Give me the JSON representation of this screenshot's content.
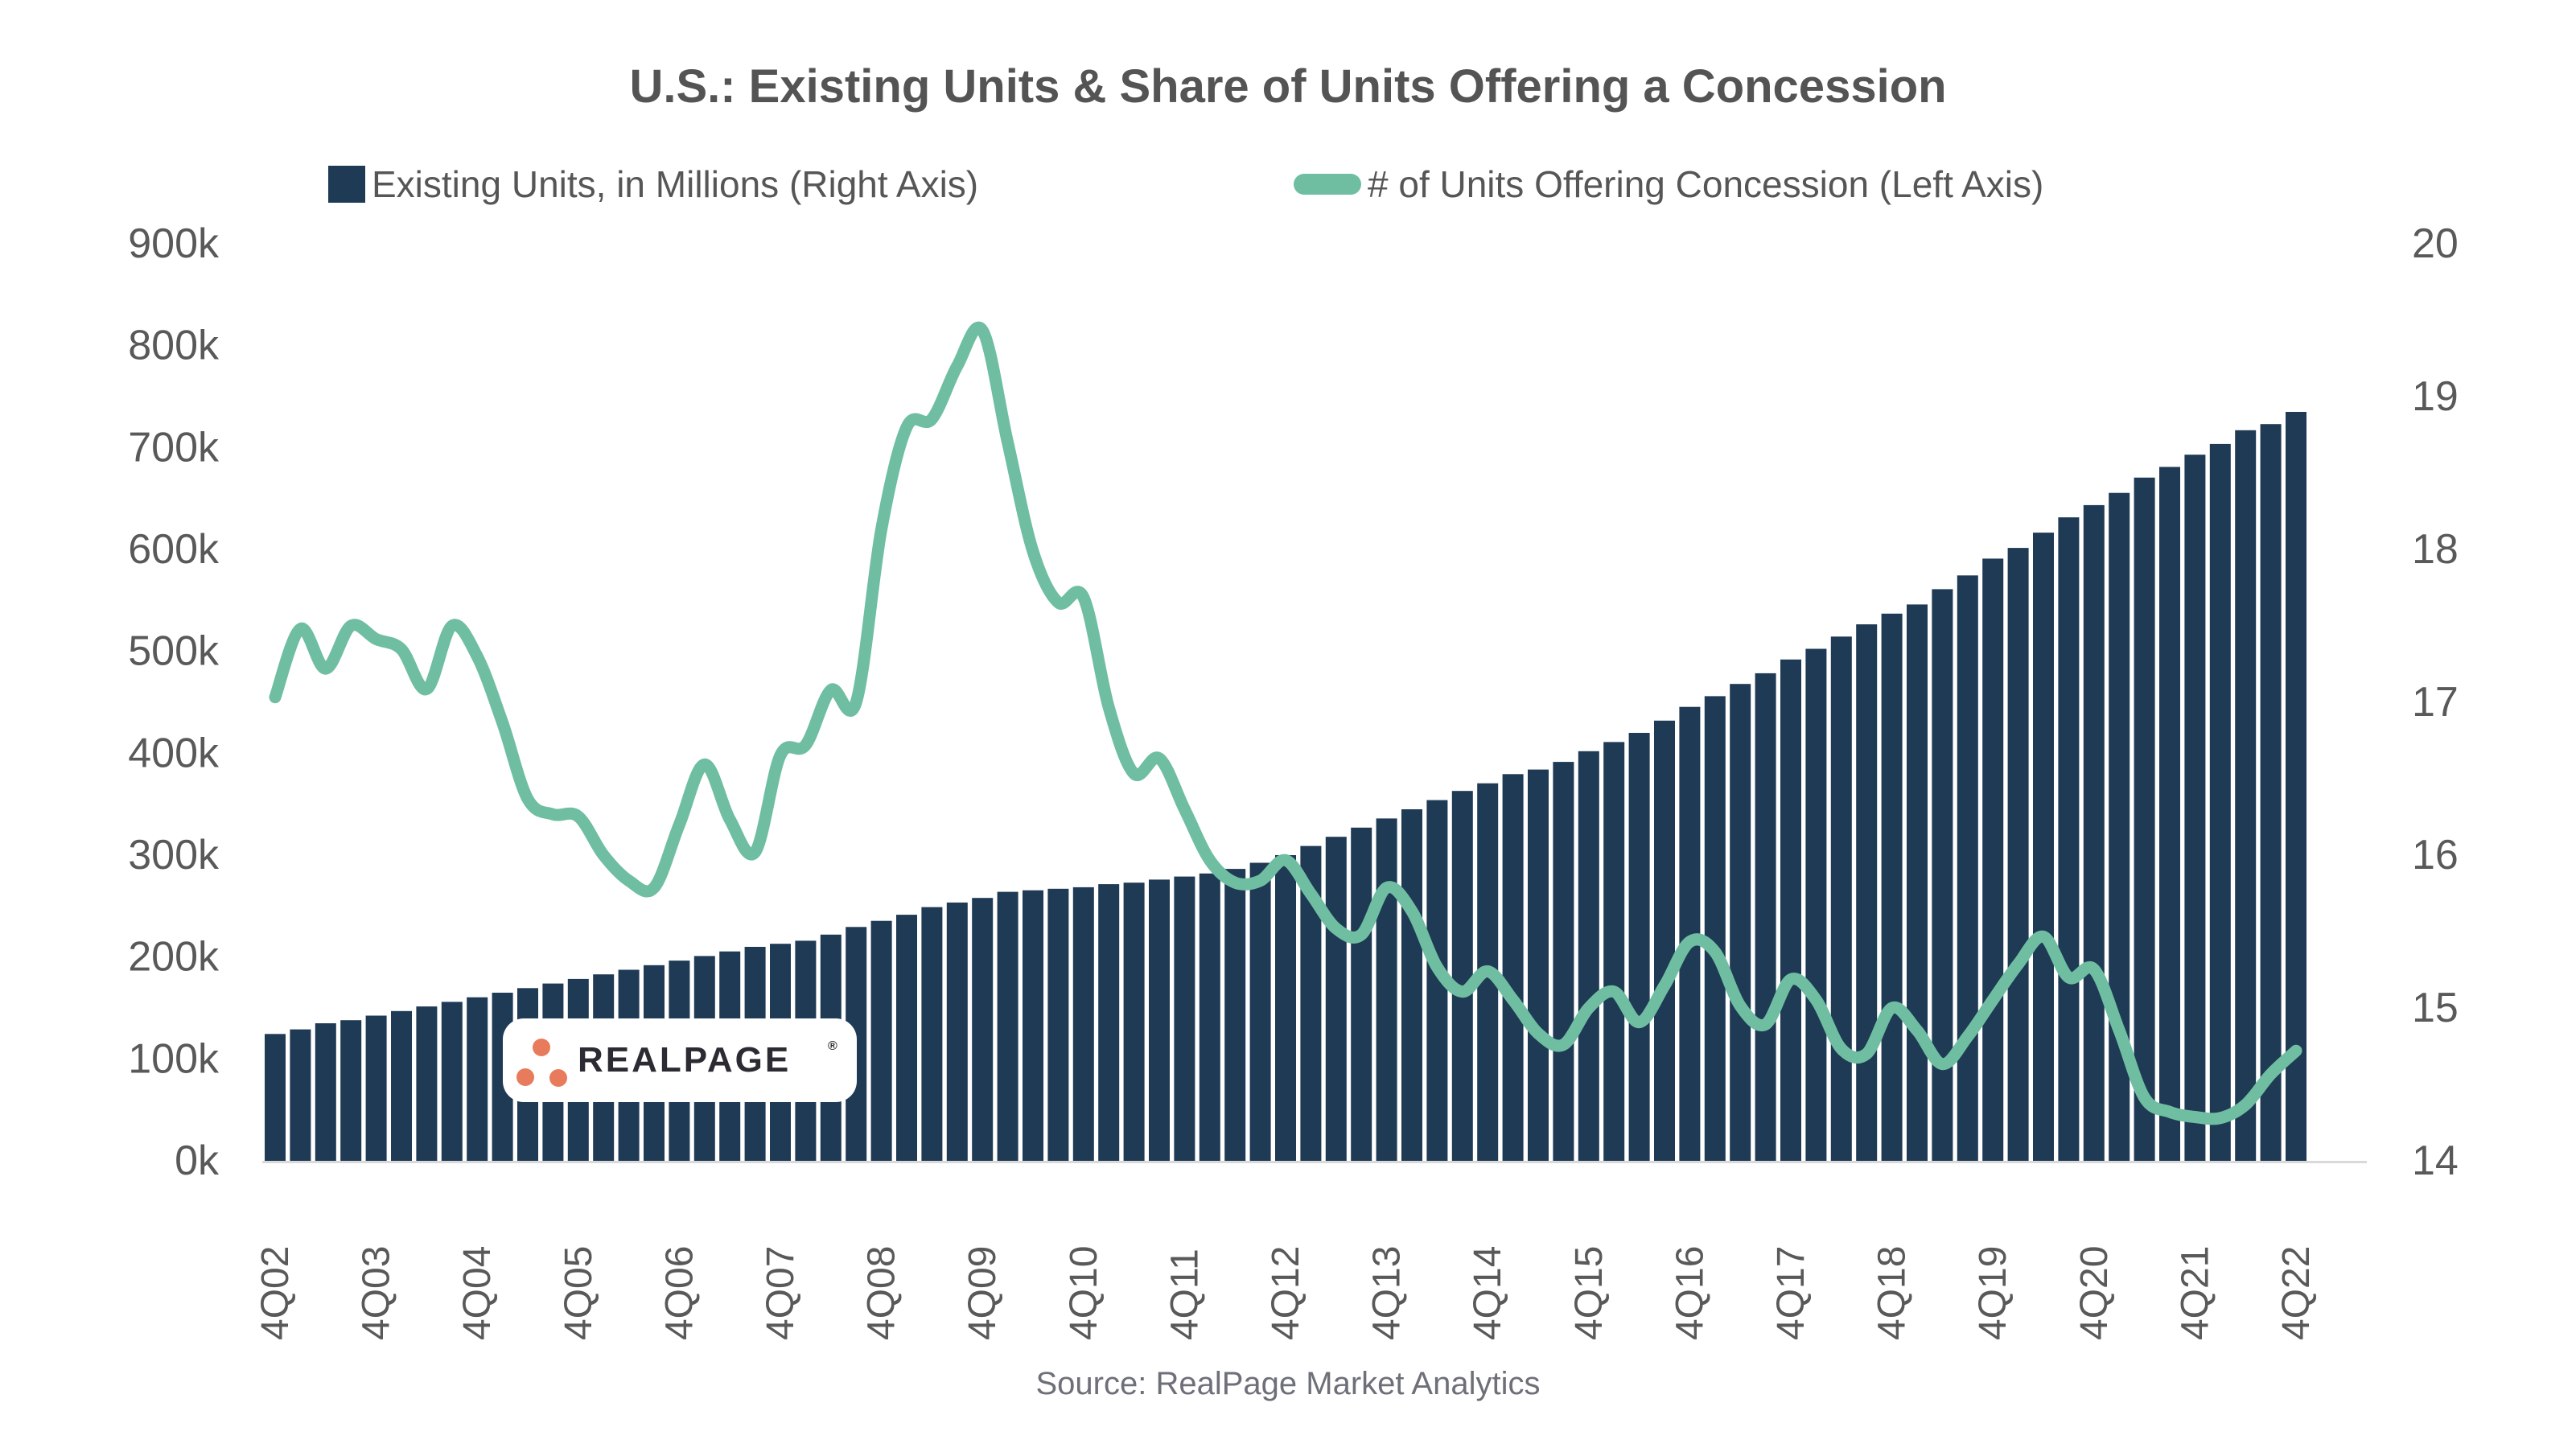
{
  "page": {
    "source": "Source: RealPage Market Analytics"
  },
  "logo": {
    "text": "REALPAGE",
    "registered": "®",
    "dot_color": "#E87B5B",
    "text_color": "#2B2B33"
  },
  "colors": {
    "bar": "#1F3A54",
    "line": "#6FBEA2",
    "title_text": "#545454",
    "axis_text": "#595959",
    "baseline": "#D9D9D9",
    "source_text": "#6E7079"
  },
  "chart_data": {
    "type": "bar+line combo",
    "title": "U.S.: Existing Units & Share of Units Offering a Concession",
    "grid": "off",
    "legend_position": "top",
    "x_tick_every": 4,
    "categories": [
      "4Q02",
      "1Q03",
      "2Q03",
      "3Q03",
      "4Q03",
      "1Q04",
      "2Q04",
      "3Q04",
      "4Q04",
      "1Q05",
      "2Q05",
      "3Q05",
      "4Q05",
      "1Q06",
      "2Q06",
      "3Q06",
      "4Q06",
      "1Q07",
      "2Q07",
      "3Q07",
      "4Q07",
      "1Q08",
      "2Q08",
      "3Q08",
      "4Q08",
      "1Q09",
      "2Q09",
      "3Q09",
      "4Q09",
      "1Q10",
      "2Q10",
      "3Q10",
      "4Q10",
      "1Q11",
      "2Q11",
      "3Q11",
      "4Q11",
      "1Q12",
      "2Q12",
      "3Q12",
      "4Q12",
      "1Q13",
      "2Q13",
      "3Q13",
      "4Q13",
      "1Q14",
      "2Q14",
      "3Q14",
      "4Q14",
      "1Q15",
      "2Q15",
      "3Q15",
      "4Q15",
      "1Q16",
      "2Q16",
      "3Q16",
      "4Q16",
      "1Q17",
      "2Q17",
      "3Q17",
      "4Q17",
      "1Q18",
      "2Q18",
      "3Q18",
      "4Q18",
      "1Q19",
      "2Q19",
      "3Q19",
      "4Q19",
      "1Q20",
      "2Q20",
      "3Q20",
      "4Q20",
      "1Q21",
      "2Q21",
      "3Q21",
      "4Q21",
      "1Q22",
      "2Q22",
      "3Q22",
      "4Q22"
    ],
    "series": [
      {
        "name": "Existing Units, in Millions (Right Axis)",
        "type": "bar",
        "axis": "right",
        "unit": "millions of units",
        "color": "#1F3A54",
        "values": [
          14.83,
          14.86,
          14.9,
          14.92,
          14.95,
          14.98,
          15.01,
          15.04,
          15.07,
          15.1,
          15.13,
          15.16,
          15.19,
          15.22,
          15.25,
          15.28,
          15.31,
          15.34,
          15.37,
          15.4,
          15.42,
          15.44,
          15.48,
          15.53,
          15.57,
          15.61,
          15.66,
          15.69,
          15.72,
          15.76,
          15.77,
          15.78,
          15.79,
          15.81,
          15.82,
          15.84,
          15.86,
          15.88,
          15.91,
          15.95,
          16.0,
          16.06,
          16.12,
          16.18,
          16.24,
          16.3,
          16.36,
          16.42,
          16.47,
          16.53,
          16.56,
          16.61,
          16.68,
          16.74,
          16.8,
          16.88,
          16.97,
          17.04,
          17.12,
          17.19,
          17.28,
          17.35,
          17.43,
          17.51,
          17.58,
          17.64,
          17.74,
          17.83,
          17.94,
          18.01,
          18.11,
          18.21,
          18.29,
          18.37,
          18.47,
          18.54,
          18.62,
          18.69,
          18.78,
          18.82,
          18.9
        ]
      },
      {
        "name": "# of Units Offering Concession (Left Axis)",
        "type": "line",
        "axis": "left",
        "unit": "thousands of units",
        "color": "#6FBEA2",
        "values": [
          455,
          522,
          483,
          525,
          512,
          502,
          463,
          525,
          495,
          430,
          355,
          340,
          338,
          300,
          275,
          268,
          330,
          389,
          335,
          303,
          398,
          408,
          462,
          450,
          620,
          720,
          728,
          780,
          815,
          705,
          598,
          548,
          553,
          445,
          380,
          395,
          345,
          295,
          273,
          275,
          295,
          262,
          228,
          222,
          268,
          245,
          190,
          166,
          186,
          158,
          125,
          114,
          150,
          166,
          136,
          172,
          215,
          205,
          152,
          134,
          178,
          158,
          110,
          105,
          150,
          128,
          95,
          122,
          158,
          193,
          220,
          180,
          188,
          128,
          62,
          48,
          43,
          42,
          55,
          85,
          108
        ]
      }
    ],
    "y_left": {
      "range": [
        0,
        900
      ],
      "unit": "thousands",
      "ticks": [
        {
          "value": 0,
          "label": "0k"
        },
        {
          "value": 100,
          "label": "100k"
        },
        {
          "value": 200,
          "label": "200k"
        },
        {
          "value": 300,
          "label": "300k"
        },
        {
          "value": 400,
          "label": "400k"
        },
        {
          "value": 500,
          "label": "500k"
        },
        {
          "value": 600,
          "label": "600k"
        },
        {
          "value": 700,
          "label": "700k"
        },
        {
          "value": 800,
          "label": "800k"
        },
        {
          "value": 900,
          "label": "900k"
        }
      ]
    },
    "y_right": {
      "range": [
        14,
        20
      ],
      "unit": "millions",
      "ticks": [
        {
          "value": 14,
          "label": "14"
        },
        {
          "value": 15,
          "label": "15"
        },
        {
          "value": 16,
          "label": "16"
        },
        {
          "value": 17,
          "label": "17"
        },
        {
          "value": 18,
          "label": "18"
        },
        {
          "value": 19,
          "label": "19"
        },
        {
          "value": 20,
          "label": "20"
        }
      ]
    }
  }
}
